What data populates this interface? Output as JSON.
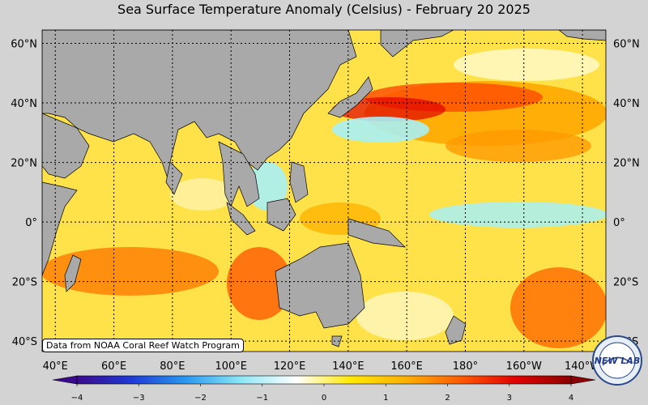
{
  "title": "Sea Surface Temperature Anomaly (Celsius) - February 20 2025",
  "credit": "Data from NOAA Coral Reef Watch Program",
  "logo_text": "NEW LAB",
  "lat_labels": [
    {
      "label": "60°N",
      "lat": 60
    },
    {
      "label": "40°N",
      "lat": 40
    },
    {
      "label": "20°N",
      "lat": 20
    },
    {
      "label": "0°",
      "lat": 0
    },
    {
      "label": "20°S",
      "lat": -20
    },
    {
      "label": "40°S",
      "lat": -40
    }
  ],
  "lon_labels": [
    {
      "label": "40°E",
      "lon": 40
    },
    {
      "label": "60°E",
      "lon": 60
    },
    {
      "label": "80°E",
      "lon": 80
    },
    {
      "label": "100°E",
      "lon": 100
    },
    {
      "label": "120°E",
      "lon": 120
    },
    {
      "label": "140°E",
      "lon": 140
    },
    {
      "label": "160°E",
      "lon": 160
    },
    {
      "label": "180°",
      "lon": 180
    },
    {
      "label": "160°W",
      "lon": 200
    },
    {
      "label": "140°W",
      "lon": 220
    }
  ],
  "colorbar": {
    "min": -4,
    "max": 4,
    "ticks": [
      "−4",
      "−3",
      "−2",
      "−1",
      "0",
      "1",
      "2",
      "3",
      "4"
    ],
    "stops": [
      "#3b0a8c",
      "#1f3ad6",
      "#2b9af0",
      "#8fe8f5",
      "#ffffff",
      "#ffe800",
      "#ffb000",
      "#ff5a00",
      "#e00000",
      "#8b0000"
    ]
  },
  "colors": {
    "land": "#a9a9a9",
    "ocean_warm": "#ffd21a",
    "ocean_hot": "#ff7a00",
    "ocean_cool": "#a8f0f5",
    "background": "#d3d3d3"
  }
}
